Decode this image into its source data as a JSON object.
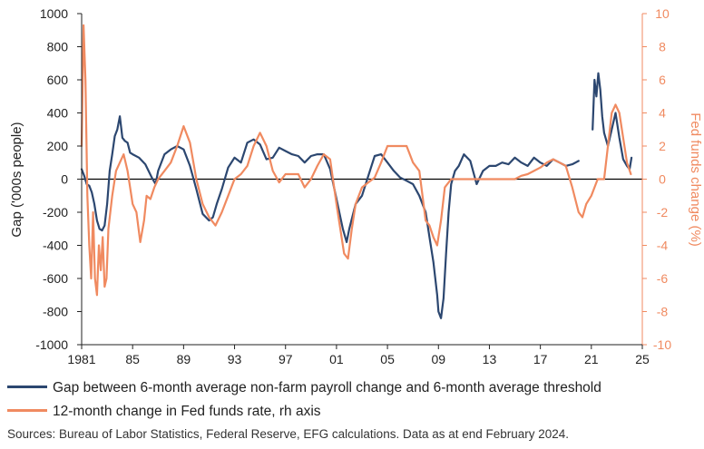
{
  "chart_data": {
    "type": "line",
    "title": "",
    "ylabel": "Gap ('000s people)",
    "y2label": "Fed funds  change (%)",
    "ylim": [
      -1000,
      1000
    ],
    "y2lim": [
      -10,
      10
    ],
    "xlim": [
      1981,
      2025
    ],
    "yticks": [
      "1000",
      "800",
      "600",
      "400",
      "200",
      "0",
      "-200",
      "-400",
      "-600",
      "-800",
      "-1000"
    ],
    "y2ticks": [
      "10",
      "8",
      "6",
      "4",
      "2",
      "0",
      "-2",
      "-4",
      "-6",
      "-8",
      "-10"
    ],
    "xticks": [
      {
        "value": 1981,
        "label": "1981"
      },
      {
        "value": 1985,
        "label": "85"
      },
      {
        "value": 1989,
        "label": "89"
      },
      {
        "value": 1993,
        "label": "93"
      },
      {
        "value": 1997,
        "label": "97"
      },
      {
        "value": 2001,
        "label": "01"
      },
      {
        "value": 2005,
        "label": "05"
      },
      {
        "value": 2009,
        "label": "09"
      },
      {
        "value": 2013,
        "label": "13"
      },
      {
        "value": 2017,
        "label": "17"
      },
      {
        "value": 2021,
        "label": "21"
      },
      {
        "value": 2025,
        "label": "25"
      }
    ],
    "series": [
      {
        "name": "Gap between 6-month average non-farm payroll change and 6-month average threshold",
        "axis": "left",
        "color": "#2C4770",
        "segments": [
          {
            "x": [
              1981.0,
              1981.2,
              1981.4,
              1981.6,
              1981.8,
              1982.0,
              1982.2,
              1982.4,
              1982.6,
              1982.8,
              1983.0,
              1983.2,
              1983.4,
              1983.6,
              1983.8,
              1984.0,
              1984.2,
              1984.4,
              1984.6,
              1984.8,
              1985.0,
              1985.5,
              1986.0,
              1986.5,
              1986.8,
              1987.0,
              1987.5,
              1988.0,
              1988.5,
              1989.0,
              1989.5,
              1990.0,
              1990.5,
              1991.0,
              1991.3,
              1991.6,
              1992.0,
              1992.5,
              1993.0,
              1993.5,
              1994.0,
              1994.5,
              1995.0,
              1995.5,
              1996.0,
              1996.5,
              1997.0,
              1997.5,
              1998.0,
              1998.5,
              1999.0,
              1999.5,
              2000.0,
              2000.5,
              2001.0,
              2001.5,
              2001.8,
              2002.0,
              2002.5,
              2003.0,
              2003.5,
              2004.0,
              2004.5,
              2005.0,
              2005.5,
              2006.0,
              2006.5,
              2007.0,
              2007.5,
              2008.0,
              2008.3,
              2008.6,
              2008.9,
              2009.0,
              2009.2,
              2009.4,
              2009.6,
              2009.8,
              2010.0,
              2010.3,
              2010.6,
              2011.0,
              2011.5,
              2012.0,
              2012.5,
              2013.0,
              2013.5,
              2014.0,
              2014.5,
              2015.0,
              2015.5,
              2016.0,
              2016.5,
              2017.0,
              2017.5,
              2018.0,
              2018.5,
              2019.0,
              2019.5,
              2020.0
            ],
            "y": [
              60,
              20,
              -30,
              -40,
              -80,
              -150,
              -250,
              -300,
              -310,
              -280,
              -150,
              50,
              150,
              260,
              300,
              380,
              250,
              230,
              220,
              160,
              150,
              130,
              90,
              10,
              -30,
              50,
              150,
              180,
              200,
              180,
              80,
              -60,
              -210,
              -250,
              -230,
              -150,
              -60,
              70,
              130,
              100,
              220,
              240,
              210,
              120,
              130,
              190,
              170,
              150,
              140,
              100,
              140,
              150,
              150,
              60,
              -120,
              -300,
              -380,
              -300,
              -150,
              -100,
              20,
              140,
              150,
              100,
              50,
              10,
              -10,
              -30,
              -100,
              -200,
              -350,
              -500,
              -700,
              -800,
              -840,
              -720,
              -450,
              -200,
              -30,
              50,
              80,
              150,
              110,
              -30,
              50,
              80,
              80,
              100,
              90,
              130,
              100,
              80,
              130,
              100,
              80,
              120,
              100,
              80,
              90,
              110
            ]
          },
          {
            "x": [
              2021.1,
              2021.25,
              2021.4,
              2021.55,
              2021.7,
              2021.85,
              2022.0,
              2022.3,
              2022.6,
              2022.9,
              2023.2,
              2023.5,
              2023.8,
              2024.0,
              2024.15
            ],
            "y": [
              300,
              600,
              500,
              640,
              540,
              380,
              280,
              200,
              300,
              400,
              250,
              120,
              80,
              60,
              130
            ]
          }
        ]
      },
      {
        "name": "12-month change in Fed funds rate, rh axis",
        "axis": "right",
        "color": "#F08A60",
        "segments": [
          {
            "x": [
              1981.0,
              1981.15,
              1981.3,
              1981.45,
              1981.6,
              1981.75,
              1981.9,
              1982.05,
              1982.2,
              1982.35,
              1982.5,
              1982.65,
              1982.8,
              1982.95,
              1983.1,
              1983.4,
              1983.7,
              1984.0,
              1984.3,
              1984.6,
              1984.8,
              1985.0,
              1985.3,
              1985.6,
              1985.9,
              1986.1,
              1986.4,
              1986.7,
              1987.0,
              1987.5,
              1988.0,
              1988.5,
              1989.0,
              1989.5,
              1990.0,
              1990.5,
              1991.0,
              1991.5,
              1992.0,
              1992.5,
              1993.0,
              1993.5,
              1994.0,
              1994.5,
              1995.0,
              1995.5,
              1996.0,
              1996.5,
              1997.0,
              1998.0,
              1998.5,
              1999.0,
              1999.5,
              2000.0,
              2000.5,
              2001.0,
              2001.3,
              2001.6,
              2001.9,
              2002.2,
              2002.5,
              2003.0,
              2003.5,
              2004.0,
              2004.5,
              2005.0,
              2005.5,
              2006.0,
              2006.5,
              2007.0,
              2007.5,
              2008.0,
              2008.3,
              2008.6,
              2008.9,
              2009.2,
              2009.5,
              2010.0,
              2011.0,
              2012.0,
              2013.0,
              2014.0,
              2015.0,
              2015.5,
              2016.0,
              2016.5,
              2017.0,
              2017.5,
              2018.0,
              2018.5,
              2019.0,
              2019.5,
              2020.0,
              2020.3,
              2020.6,
              2021.0,
              2021.5,
              2022.0,
              2022.3,
              2022.6,
              2022.9,
              2023.2,
              2023.5,
              2023.8,
              2024.1
            ],
            "y": [
              2,
              9.3,
              6,
              -1,
              -4,
              -6,
              -2,
              -6,
              -7,
              -4,
              -5.5,
              -3.5,
              -6.5,
              -6,
              -3,
              -1,
              0.5,
              1,
              1.5,
              0.5,
              -0.5,
              -1.5,
              -2,
              -3.8,
              -2.5,
              -1,
              -1.2,
              -0.5,
              0,
              0.5,
              1,
              2,
              3.2,
              2.2,
              0,
              -1.5,
              -2.3,
              -2.8,
              -2,
              -1,
              0,
              0.3,
              0.8,
              2,
              2.8,
              2,
              0.5,
              -0.2,
              0.3,
              0.3,
              -0.5,
              0,
              0.8,
              1.5,
              1.2,
              -1.5,
              -3,
              -4.5,
              -4.8,
              -3,
              -1.5,
              -0.5,
              -0.2,
              0.1,
              1,
              2,
              2,
              2,
              2,
              1,
              0.5,
              -2.5,
              -2.8,
              -3.5,
              -4,
              -2.5,
              -0.5,
              0,
              0,
              0,
              0,
              0,
              0,
              0.2,
              0.3,
              0.5,
              0.7,
              1,
              1.2,
              1,
              0.8,
              -0.5,
              -2,
              -2.3,
              -1.5,
              -1,
              0,
              0,
              2,
              4,
              4.5,
              4,
              2.5,
              1,
              0.3
            ]
          }
        ]
      }
    ]
  },
  "legend": {
    "item1": "Gap between 6-month average non-farm payroll change and 6-month average threshold",
    "item2": "12-month change in Fed funds rate, rh axis",
    "color1": "#2C4770",
    "color2": "#F08A60"
  },
  "source": "Sources: Bureau of Labor Statistics, Federal Reserve, EFG calculations. Data as at end February 2024."
}
